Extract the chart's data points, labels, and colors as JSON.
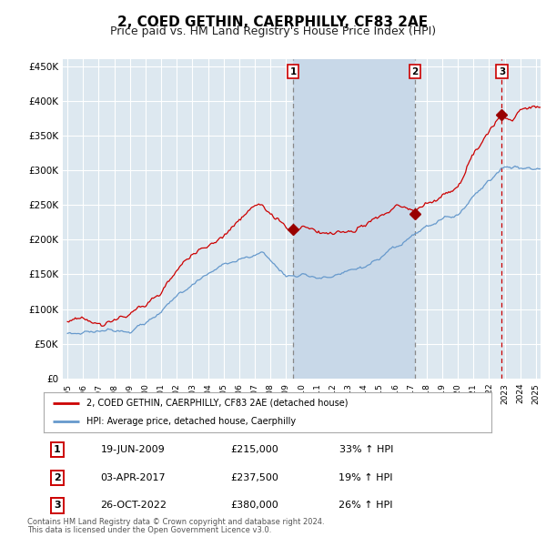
{
  "title": "2, COED GETHIN, CAERPHILLY, CF83 2AE",
  "subtitle": "Price paid vs. HM Land Registry's House Price Index (HPI)",
  "title_fontsize": 11,
  "subtitle_fontsize": 9,
  "background_color": "#ffffff",
  "plot_bg_color": "#dde8f0",
  "shaded_region_color": "#c8d8e8",
  "grid_color": "#ffffff",
  "red_line_color": "#cc0000",
  "blue_line_color": "#6699cc",
  "sale_marker_color": "#990000",
  "vline_gray_color": "#888888",
  "vline_red_color": "#cc0000",
  "legend_label_red": "2, COED GETHIN, CAERPHILLY, CF83 2AE (detached house)",
  "legend_label_blue": "HPI: Average price, detached house, Caerphilly",
  "sales": [
    {
      "label": "1",
      "date_str": "19-JUN-2009",
      "date_x": 2009.46,
      "price": 215000,
      "pct": "33%",
      "dir": "↑"
    },
    {
      "label": "2",
      "date_str": "03-APR-2017",
      "date_x": 2017.25,
      "price": 237500,
      "pct": "19%",
      "dir": "↑"
    },
    {
      "label": "3",
      "date_str": "26-OCT-2022",
      "date_x": 2022.82,
      "price": 380000,
      "pct": "26%",
      "dir": "↑"
    }
  ],
  "footer_line1": "Contains HM Land Registry data © Crown copyright and database right 2024.",
  "footer_line2": "This data is licensed under the Open Government Licence v3.0.",
  "ylim": [
    0,
    460000
  ],
  "xlim": [
    1994.7,
    2025.3
  ],
  "yticks": [
    0,
    50000,
    100000,
    150000,
    200000,
    250000,
    300000,
    350000,
    400000,
    450000
  ],
  "ytick_labels": [
    "£0",
    "£50K",
    "£100K",
    "£150K",
    "£200K",
    "£250K",
    "£300K",
    "£350K",
    "£400K",
    "£450K"
  ],
  "xtick_years": [
    1995,
    1996,
    1997,
    1998,
    1999,
    2000,
    2001,
    2002,
    2003,
    2004,
    2005,
    2006,
    2007,
    2008,
    2009,
    2010,
    2011,
    2012,
    2013,
    2014,
    2015,
    2016,
    2017,
    2018,
    2019,
    2020,
    2021,
    2022,
    2023,
    2024,
    2025
  ]
}
